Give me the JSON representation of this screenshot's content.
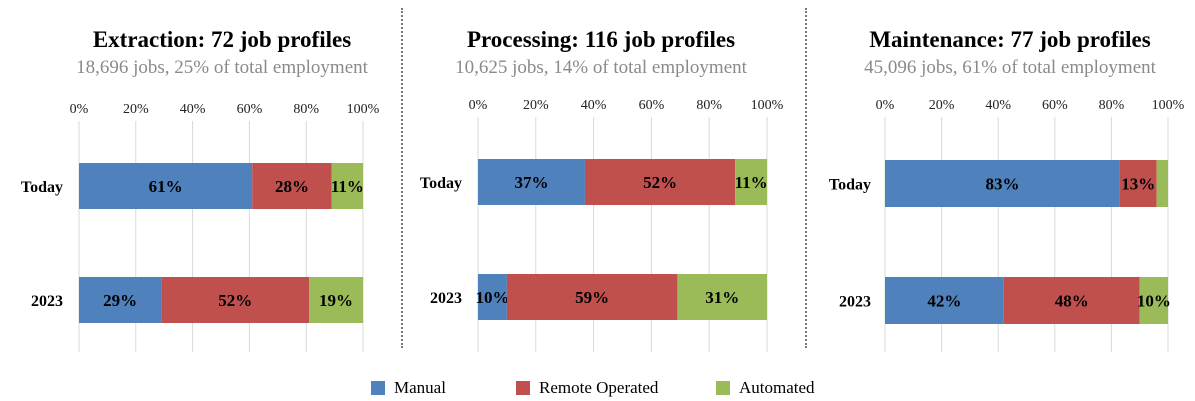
{
  "chart_data": [
    {
      "type": "bar",
      "orientation": "horizontal",
      "stacked": true,
      "title": "Extraction: 72 job profiles",
      "subtitle": "18,696 jobs, 25% of total employment",
      "categories": [
        "Today",
        "2023"
      ],
      "xlim": [
        0,
        100
      ],
      "ticks": [
        "0%",
        "20%",
        "40%",
        "60%",
        "80%",
        "100%"
      ],
      "tick_position": "top",
      "series": [
        {
          "name": "Manual",
          "color": "#4F81BD",
          "values": [
            61,
            29
          ],
          "labels": [
            "61%",
            "29%"
          ]
        },
        {
          "name": "Remote Operated",
          "color": "#C0504D",
          "values": [
            28,
            52
          ],
          "labels": [
            "28%",
            "52%"
          ]
        },
        {
          "name": "Automated",
          "color": "#9BBB59",
          "values": [
            11,
            19
          ],
          "labels": [
            "11%",
            "19%"
          ]
        }
      ]
    },
    {
      "type": "bar",
      "orientation": "horizontal",
      "stacked": true,
      "title": "Processing: 116 job profiles",
      "subtitle": "10,625 jobs, 14% of total employment",
      "categories": [
        "Today",
        "2023"
      ],
      "xlim": [
        0,
        100
      ],
      "ticks": [
        "0%",
        "20%",
        "40%",
        "60%",
        "80%",
        "100%"
      ],
      "tick_position": "top",
      "series": [
        {
          "name": "Manual",
          "color": "#4F81BD",
          "values": [
            37,
            10
          ],
          "labels": [
            "37%",
            "10%"
          ]
        },
        {
          "name": "Remote Operated",
          "color": "#C0504D",
          "values": [
            52,
            59
          ],
          "labels": [
            "52%",
            "59%"
          ]
        },
        {
          "name": "Automated",
          "color": "#9BBB59",
          "values": [
            11,
            31
          ],
          "labels": [
            "11%",
            "31%"
          ]
        }
      ]
    },
    {
      "type": "bar",
      "orientation": "horizontal",
      "stacked": true,
      "title": "Maintenance: 77 job profiles",
      "subtitle": "45,096 jobs, 61% of total employment",
      "categories": [
        "Today",
        "2023"
      ],
      "xlim": [
        0,
        100
      ],
      "ticks": [
        "0%",
        "20%",
        "40%",
        "60%",
        "80%",
        "100%"
      ],
      "tick_position": "top",
      "series": [
        {
          "name": "Manual",
          "color": "#4F81BD",
          "values": [
            83,
            42
          ],
          "labels": [
            "83%",
            "42%"
          ]
        },
        {
          "name": "Remote Operated",
          "color": "#C0504D",
          "values": [
            13,
            48
          ],
          "labels": [
            "13%",
            "48%"
          ]
        },
        {
          "name": "Automated",
          "color": "#9BBB59",
          "values": [
            4,
            10
          ],
          "labels": [
            "",
            "10%"
          ]
        }
      ]
    }
  ],
  "legend": {
    "placement": "bottom-center",
    "items": [
      {
        "label": "Manual",
        "color": "#4F81BD"
      },
      {
        "label": "Remote Operated",
        "color": "#C0504D"
      },
      {
        "label": "Automated",
        "color": "#9BBB59"
      }
    ]
  }
}
